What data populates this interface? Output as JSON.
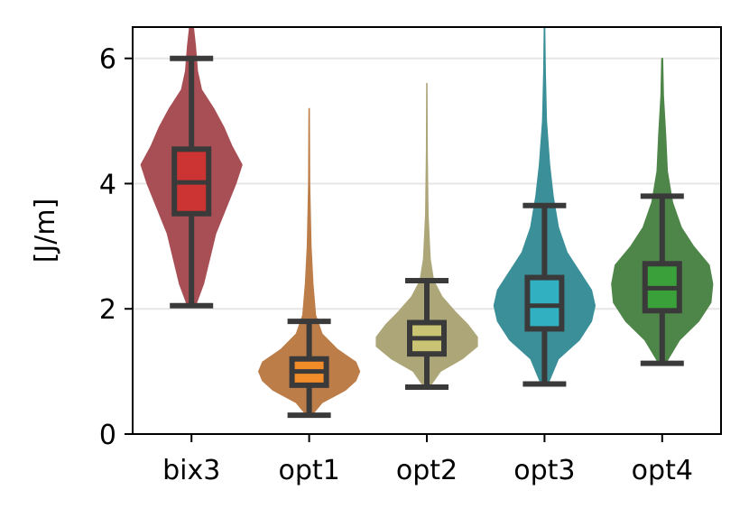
{
  "chart_data": {
    "type": "violin",
    "title": "",
    "xlabel": "",
    "ylabel": "[J/m]",
    "ylim": [
      0,
      6.5
    ],
    "yticks": [
      0,
      2,
      4,
      6
    ],
    "grid": "horizontal",
    "legend": "none",
    "categories": [
      "bix3",
      "opt1",
      "opt2",
      "opt3",
      "opt4"
    ],
    "series": [
      {
        "category": "bix3",
        "violin_color": "#a84f55",
        "box_color": "#cc3333",
        "whisker_low": 2.05,
        "q1": 3.52,
        "median": 4.02,
        "q3": 4.55,
        "whisker_high": 6.0,
        "density": [
          [
            2.05,
            0.02
          ],
          [
            2.4,
            0.06
          ],
          [
            2.8,
            0.09
          ],
          [
            3.2,
            0.12
          ],
          [
            3.6,
            0.17
          ],
          [
            4.0,
            0.22
          ],
          [
            4.3,
            0.25
          ],
          [
            4.6,
            0.2
          ],
          [
            4.9,
            0.16
          ],
          [
            5.2,
            0.11
          ],
          [
            5.5,
            0.05
          ],
          [
            5.8,
            0.03
          ],
          [
            6.2,
            0.02
          ],
          [
            6.5,
            0.01
          ]
        ]
      },
      {
        "category": "opt1",
        "violin_color": "#bc7d48",
        "box_color": "#f28c28",
        "whisker_low": 0.3,
        "q1": 0.78,
        "median": 1.0,
        "q3": 1.2,
        "whisker_high": 1.8,
        "density": [
          [
            0.3,
            0.02
          ],
          [
            0.5,
            0.1
          ],
          [
            0.7,
            0.28
          ],
          [
            0.85,
            0.36
          ],
          [
            1.0,
            0.39
          ],
          [
            1.15,
            0.36
          ],
          [
            1.35,
            0.22
          ],
          [
            1.6,
            0.1
          ],
          [
            1.9,
            0.05
          ],
          [
            2.4,
            0.03
          ],
          [
            3.0,
            0.015
          ],
          [
            4.0,
            0.005
          ],
          [
            5.2,
            0.002
          ]
        ]
      },
      {
        "category": "opt2",
        "violin_color": "#ada679",
        "box_color": "#c9c374",
        "whisker_low": 0.75,
        "q1": 1.28,
        "median": 1.53,
        "q3": 1.78,
        "whisker_high": 2.45,
        "density": [
          [
            0.75,
            0.02
          ],
          [
            1.0,
            0.1
          ],
          [
            1.2,
            0.26
          ],
          [
            1.4,
            0.37
          ],
          [
            1.55,
            0.37
          ],
          [
            1.75,
            0.3
          ],
          [
            1.95,
            0.21
          ],
          [
            2.2,
            0.11
          ],
          [
            2.45,
            0.05
          ],
          [
            2.8,
            0.025
          ],
          [
            3.5,
            0.01
          ],
          [
            4.5,
            0.004
          ],
          [
            5.6,
            0.002
          ]
        ]
      },
      {
        "category": "opt3",
        "violin_color": "#3a8f98",
        "box_color": "#30b0c0",
        "whisker_low": 0.8,
        "q1": 1.68,
        "median": 2.05,
        "q3": 2.5,
        "whisker_high": 3.65,
        "density": [
          [
            0.8,
            0.02
          ],
          [
            1.2,
            0.08
          ],
          [
            1.5,
            0.2
          ],
          [
            1.8,
            0.27
          ],
          [
            2.05,
            0.29
          ],
          [
            2.3,
            0.27
          ],
          [
            2.6,
            0.2
          ],
          [
            2.9,
            0.13
          ],
          [
            3.3,
            0.08
          ],
          [
            3.8,
            0.05
          ],
          [
            4.3,
            0.03
          ],
          [
            5.0,
            0.012
          ],
          [
            5.8,
            0.005
          ],
          [
            6.5,
            0.002
          ]
        ]
      },
      {
        "category": "opt4",
        "violin_color": "#4e8549",
        "box_color": "#3aa03a",
        "whisker_low": 1.13,
        "q1": 1.97,
        "median": 2.33,
        "q3": 2.72,
        "whisker_high": 3.8,
        "density": [
          [
            1.13,
            0.02
          ],
          [
            1.5,
            0.1
          ],
          [
            1.8,
            0.21
          ],
          [
            2.1,
            0.28
          ],
          [
            2.4,
            0.29
          ],
          [
            2.7,
            0.27
          ],
          [
            3.0,
            0.18
          ],
          [
            3.3,
            0.11
          ],
          [
            3.7,
            0.06
          ],
          [
            4.2,
            0.03
          ],
          [
            4.8,
            0.02
          ],
          [
            5.4,
            0.008
          ],
          [
            6.0,
            0.003
          ]
        ]
      }
    ]
  }
}
